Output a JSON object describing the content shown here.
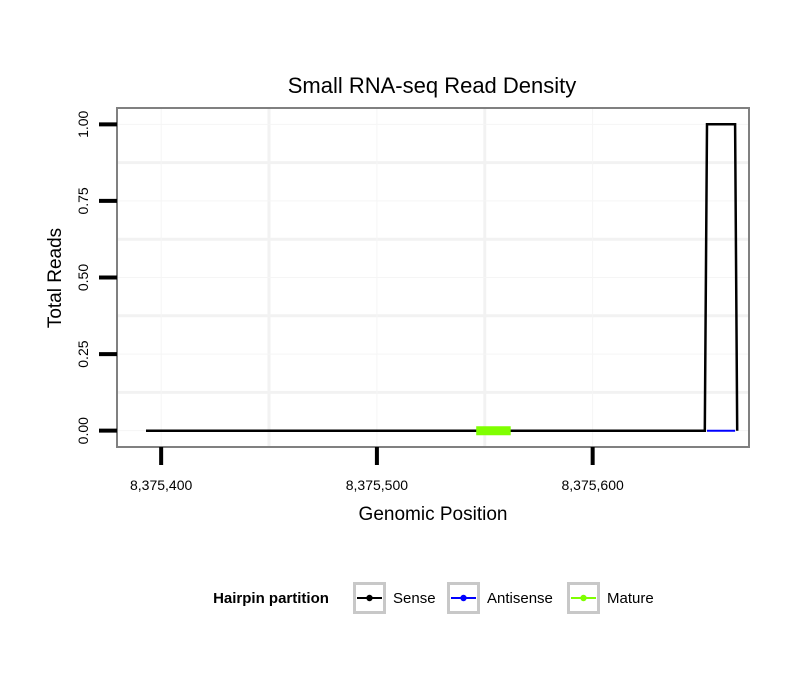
{
  "chart_data": {
    "type": "line",
    "title": "Small RNA-seq Read Density",
    "xlabel": "Genomic Position",
    "ylabel": "Total Reads",
    "xlim": [
      8375380,
      8375672
    ],
    "ylim": [
      -0.05,
      1.05
    ],
    "x_ticks": [
      8375400,
      8375500,
      8375600
    ],
    "x_tick_labels": [
      "8,375,400",
      "8,375,500",
      "8,375,600"
    ],
    "y_ticks": [
      0,
      0.25,
      0.5,
      0.75,
      1.0
    ],
    "y_tick_labels": [
      "0.00",
      "0.25",
      "0.50",
      "0.75",
      "1.00"
    ],
    "grid": true,
    "legend": {
      "title": "Hairpin partition",
      "position": "bottom",
      "entries": [
        "Sense",
        "Antisense",
        "Mature"
      ]
    },
    "series": [
      {
        "name": "Sense",
        "color": "#000000",
        "x": [
          8375393,
          8375652,
          8375653,
          8375666,
          8375667
        ],
        "y": [
          0,
          0,
          1,
          1,
          0
        ]
      },
      {
        "name": "Antisense",
        "color": "#0000ff",
        "x": [
          8375653,
          8375666
        ],
        "y": [
          0,
          0
        ]
      },
      {
        "name": "Mature",
        "color": "#7fff00",
        "x": [
          8375546,
          8375562
        ],
        "y": [
          0,
          0
        ]
      }
    ]
  }
}
